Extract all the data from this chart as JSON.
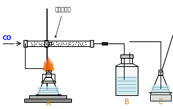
{
  "bg_color": "#ffffff",
  "line_color": "#000000",
  "co_label": "CO",
  "co_color": "#0000ff",
  "tube_label": "铁的氧化物",
  "label_A": "A",
  "label_B": "B",
  "label_C": "C",
  "fig_width": 2.51,
  "fig_height": 1.58,
  "dpi": 100
}
